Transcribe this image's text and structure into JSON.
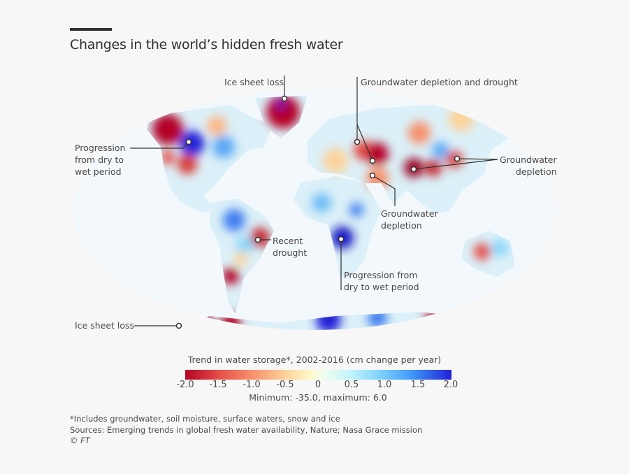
{
  "title": "Changes in the world’s hidden fresh water",
  "annotations": {
    "ice_sheet_greenland": "Ice sheet loss",
    "groundwater_drought": "Groundwater depletion and drought",
    "progression_na": [
      "Progression",
      "from dry to",
      "wet period"
    ],
    "groundwater_east": [
      "Groundwater",
      "depletion"
    ],
    "groundwater_mideast": [
      "Groundwater",
      "depletion"
    ],
    "recent_drought": [
      "Recent",
      "drought"
    ],
    "progression_africa": [
      "Progression from",
      "dry to wet period"
    ],
    "ice_sheet_antarctica": "Ice sheet loss"
  },
  "legend": {
    "title": "Trend in water storage*, 2002-2016 (cm change per year)",
    "ticks": [
      "-2.0",
      "-1.5",
      "-1.0",
      "-0.5",
      "0",
      "0.5",
      "1.0",
      "1.5",
      "2.0"
    ],
    "range": [
      -2.0,
      2.0
    ],
    "minmax": "Minimum: -35.0, maximum: 6.0",
    "colors": {
      "min": "#b40426",
      "mid": "#fff8c8",
      "max": "#2020d8"
    }
  },
  "footer": {
    "note": "*Includes groundwater, soil moisture, surface waters, snow and ice",
    "sources": "Sources: Emerging trends in global fresh water availability, Nature; Nasa Grace mission",
    "copyright": "© FT"
  }
}
